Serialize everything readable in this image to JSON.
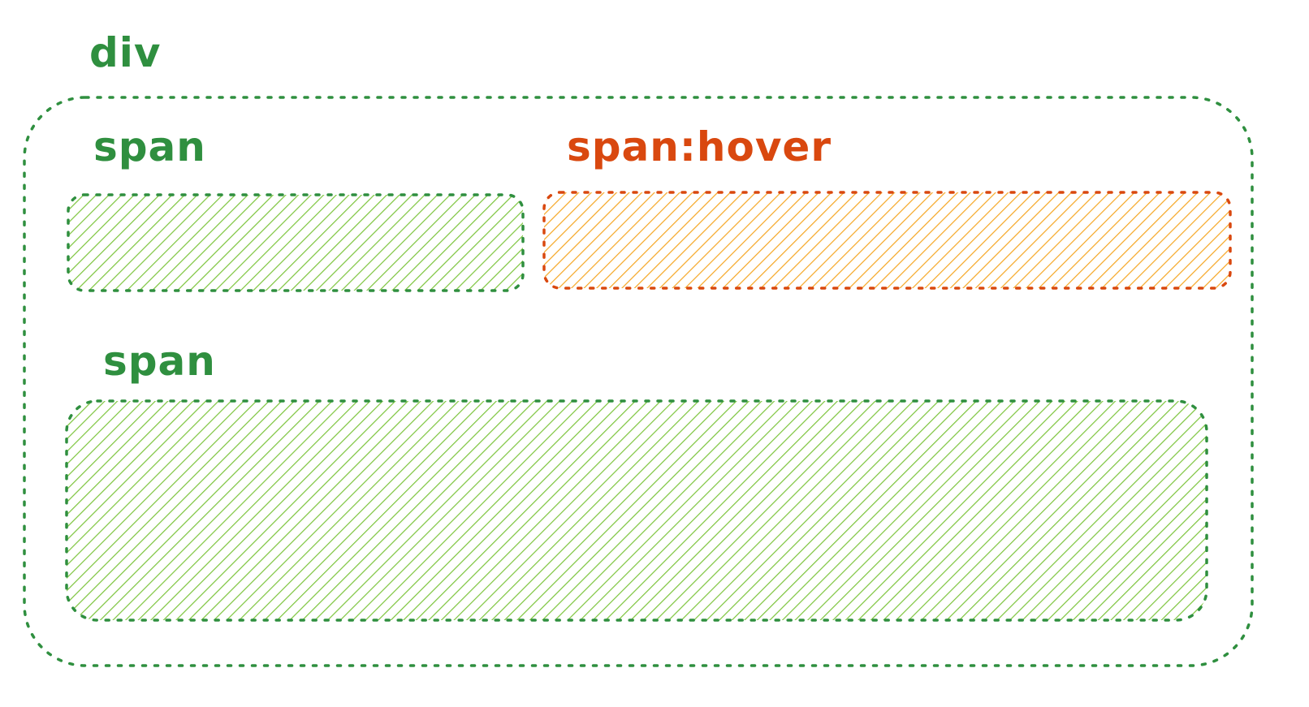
{
  "diagram": {
    "colors": {
      "green_stroke": "#2f8f3f",
      "green_hatch": "#7cc43c",
      "orange_stroke": "#d9480f",
      "orange_hatch": "#f5a623"
    },
    "div_box": {
      "label": "div"
    },
    "span_top_left": {
      "label": "span"
    },
    "span_hover": {
      "label": "span:hover"
    },
    "span_bottom": {
      "label": "span"
    }
  }
}
